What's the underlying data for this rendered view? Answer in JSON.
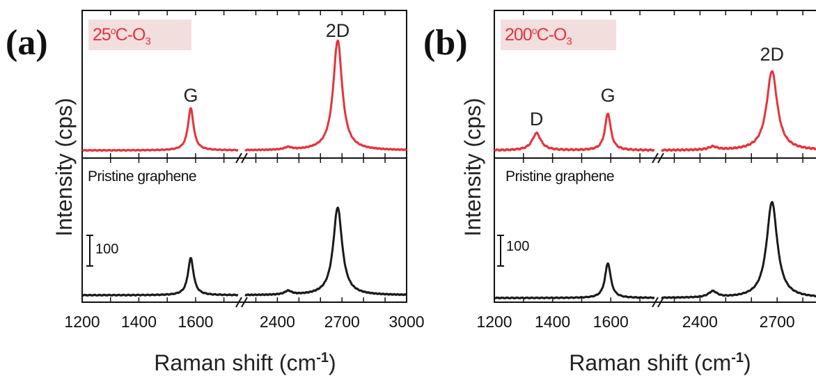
{
  "colors": {
    "treated": "#e4333c",
    "pristine": "#1a1a1a",
    "sample_label_bg": "#f3dede"
  },
  "chart_data": [
    {
      "type": "line",
      "panel_label": "(a)",
      "sample_label_main": "25",
      "sample_label_sup": "o",
      "sample_label_rest": "C-O",
      "sample_label_sub": "3",
      "ylabel": "Intensity (cps)",
      "xlabel_main": "Raman shift (cm",
      "xlabel_sup": "-1",
      "xlabel_end": ")",
      "x_segments": [
        {
          "xlim": [
            1200,
            1750
          ]
        },
        {
          "xlim": [
            2250,
            3000
          ]
        }
      ],
      "xticks": [
        "1200",
        "1400",
        "1600",
        "2400",
        "2700",
        "3000"
      ],
      "scale_bar": "100",
      "peak_labels": [
        {
          "text": "G",
          "x": 1583
        },
        {
          "text": "2D",
          "x": 2680
        }
      ],
      "series": [
        {
          "name": "25oC-O3",
          "color": "#e4333c",
          "baseline": 0,
          "noise": 2,
          "peaks": [
            {
              "x": 1583,
              "height": 170,
              "width": 12
            },
            {
              "x": 2450,
              "height": 10,
              "width": 20
            },
            {
              "x": 2680,
              "height": 445,
              "width": 25
            }
          ]
        },
        {
          "name": "Pristine graphene",
          "color": "#1a1a1a",
          "baseline": 0,
          "noise": 2,
          "peaks": [
            {
              "x": 1583,
              "height": 150,
              "width": 12
            },
            {
              "x": 2450,
              "height": 15,
              "width": 20
            },
            {
              "x": 2680,
              "height": 355,
              "width": 25
            }
          ]
        }
      ]
    },
    {
      "type": "line",
      "panel_label": "(b)",
      "sample_label_main": "200",
      "sample_label_sup": "o",
      "sample_label_rest": "C-O",
      "sample_label_sub": "3",
      "ylabel": "Intensity (cps)",
      "xlabel_main": "Raman shift (cm",
      "xlabel_sup": "-1",
      "xlabel_end": ")",
      "x_segments": [
        {
          "xlim": [
            1200,
            1750
          ]
        },
        {
          "xlim": [
            2250,
            2900
          ]
        }
      ],
      "xticks": [
        "1200",
        "1400",
        "1600",
        "2400",
        "2700"
      ],
      "scale_bar": "100",
      "peak_labels": [
        {
          "text": "D",
          "x": 1345
        },
        {
          "text": "G",
          "x": 1590
        },
        {
          "text": "2D",
          "x": 2680
        }
      ],
      "series": [
        {
          "name": "200oC-O3",
          "color": "#e4333c",
          "baseline": 0,
          "noise": 3,
          "peaks": [
            {
              "x": 1345,
              "height": 65,
              "width": 18
            },
            {
              "x": 1590,
              "height": 140,
              "width": 12
            },
            {
              "x": 2450,
              "height": 12,
              "width": 20
            },
            {
              "x": 2680,
              "height": 300,
              "width": 25
            }
          ]
        },
        {
          "name": "Pristine graphene",
          "color": "#1a1a1a",
          "baseline": 0,
          "noise": 2,
          "peaks": [
            {
              "x": 1590,
              "height": 145,
              "width": 12
            },
            {
              "x": 2450,
              "height": 25,
              "width": 20
            },
            {
              "x": 2680,
              "height": 400,
              "width": 25
            }
          ]
        }
      ],
      "pristine_label": "Pristine graphene"
    }
  ]
}
